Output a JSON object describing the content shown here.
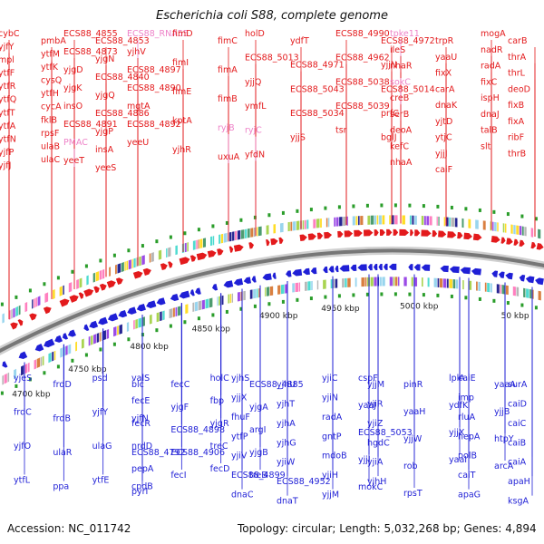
{
  "title": "Escherichia coli S88, complete genome",
  "footer": {
    "accession": "Accession: NC_011742",
    "summary": "Topology: circular; Length: 5,032,268 bp; Genes: 4,894"
  },
  "colors": {
    "forward": "#e31a1c",
    "reverse": "#1f1fd6",
    "rna": "#ee82c8",
    "backbone": "#777777",
    "tick": "#2a9d2a"
  },
  "ticks": [
    "4700 kbp",
    "4750 kbp",
    "4800 kbp",
    "4850 kbp",
    "4900 kbp",
    "4950 kbp",
    "5000 kbp",
    "50 kbp"
  ],
  "forward_labels": [
    [
      "cybC",
      "pmbA",
      "yjfY",
      "ytfM",
      "mpl",
      "ytfK",
      "ytfF",
      "cysQ",
      "ytfR",
      "ytfH",
      "ytfQ",
      "cycA",
      "ytfT",
      "fklB",
      "ytfA",
      "rpsF",
      "ytfN",
      "ulaB",
      "yjfP",
      "ulaC",
      "yjfJ"
    ],
    [
      "ECS88_4855",
      "ECS88_4853",
      "ECS88_RNA55",
      "ECS88_4873",
      "yjgN",
      "yjhV",
      "yjgD",
      "ECS88_4840",
      "ECS88_4897",
      "yjgK",
      "yjgQ",
      "ECS88_4890",
      "insO",
      "ECS88_4886",
      "mgtA",
      "ECS88_4891",
      "yjgP",
      "ECS88_4892",
      "PMAC",
      "insA",
      "yeeU",
      "yeeT",
      "yeeS"
    ],
    [
      "fimD",
      "fimC",
      "fimI",
      "fimA",
      "fimE",
      "fimB",
      "kptA",
      "ryjB",
      "yjhR",
      "uxuA"
    ],
    [
      "holD",
      "ydfT",
      "ECS88_4990",
      "ECS88_4972",
      "ECS88_5013",
      "ECS88_4971",
      "ECS88_4962",
      "yjjN",
      "yjjQ",
      "ECS88_5043",
      "ECS88_5038",
      "ECS88_5014",
      "ymfL",
      "ECS88_5034",
      "ECS88_5039",
      "prfC",
      "ryjC",
      "yjjS",
      "tsr",
      "bglJ",
      "yfdN"
    ],
    [
      "tpke11",
      "trpR",
      "mogA",
      "carB",
      "ileS",
      "yaaU",
      "nadR",
      "thrA",
      "nhaR",
      "fixX",
      "radA",
      "thrL",
      "sokC",
      "carA",
      "fixC",
      "deoD",
      "creB",
      "dnaK",
      "ispH",
      "fixB",
      "serB",
      "yjtD",
      "dnaJ",
      "fixA",
      "deoA",
      "ytjC",
      "talB",
      "ribF",
      "kefC",
      "yjjJ",
      "slt",
      "thrB",
      "nhaA",
      "caiF"
    ]
  ],
  "reverse_labels": [
    [
      "yjeS",
      "frdD",
      "psd",
      "blc",
      "frdC",
      "frdB",
      "yjfY",
      "yjfN",
      "yjfO",
      "ulaR",
      "ulaG",
      "ECS88_4792",
      "ytfL",
      "ppa",
      "ytfE",
      "cpdB"
    ],
    [
      "valS",
      "fecC",
      "holC",
      "ECS88_4885",
      "fecE",
      "yjgF",
      "fbp",
      "yjgA",
      "fecR",
      "ECS88_4898",
      "yjgR",
      "argI",
      "nrdD",
      "ECS88_4906",
      "treC",
      "yjgB",
      "pepA",
      "fecI",
      "fecD",
      "treB",
      "pyrI"
    ],
    [
      "yjhS",
      "yjhU",
      "yjiC",
      "yjjM",
      "yjjX",
      "yjhT",
      "yjiN",
      "yjiR",
      "fhuF",
      "yjhA",
      "radA",
      "yjiZ",
      "ytfP",
      "yjhG",
      "gntP",
      "hgdC",
      "yjiV",
      "yjiW",
      "mdoB",
      "yjiA",
      "ECS88_4899",
      "ECS88_4952",
      "yjiH",
      "yjhH",
      "dnaC",
      "dnaT",
      "yjjM"
    ],
    [
      "cspF",
      "pinR",
      "lplA",
      "yaaA",
      "yaaJ",
      "yaaH",
      "ydfK",
      "yjjB",
      "ECS88_5053",
      "yjjW",
      "yjjX",
      "htpY",
      "yjjI",
      "rob",
      "yaaI",
      "arcA",
      "mokC",
      "rpsT"
    ],
    [
      "caiE",
      "surA",
      "imp",
      "caiD",
      "rluA",
      "caiC",
      "hepA",
      "caiB",
      "polB",
      "caiA",
      "caiT",
      "apaH",
      "apaG",
      "ksgA"
    ]
  ]
}
